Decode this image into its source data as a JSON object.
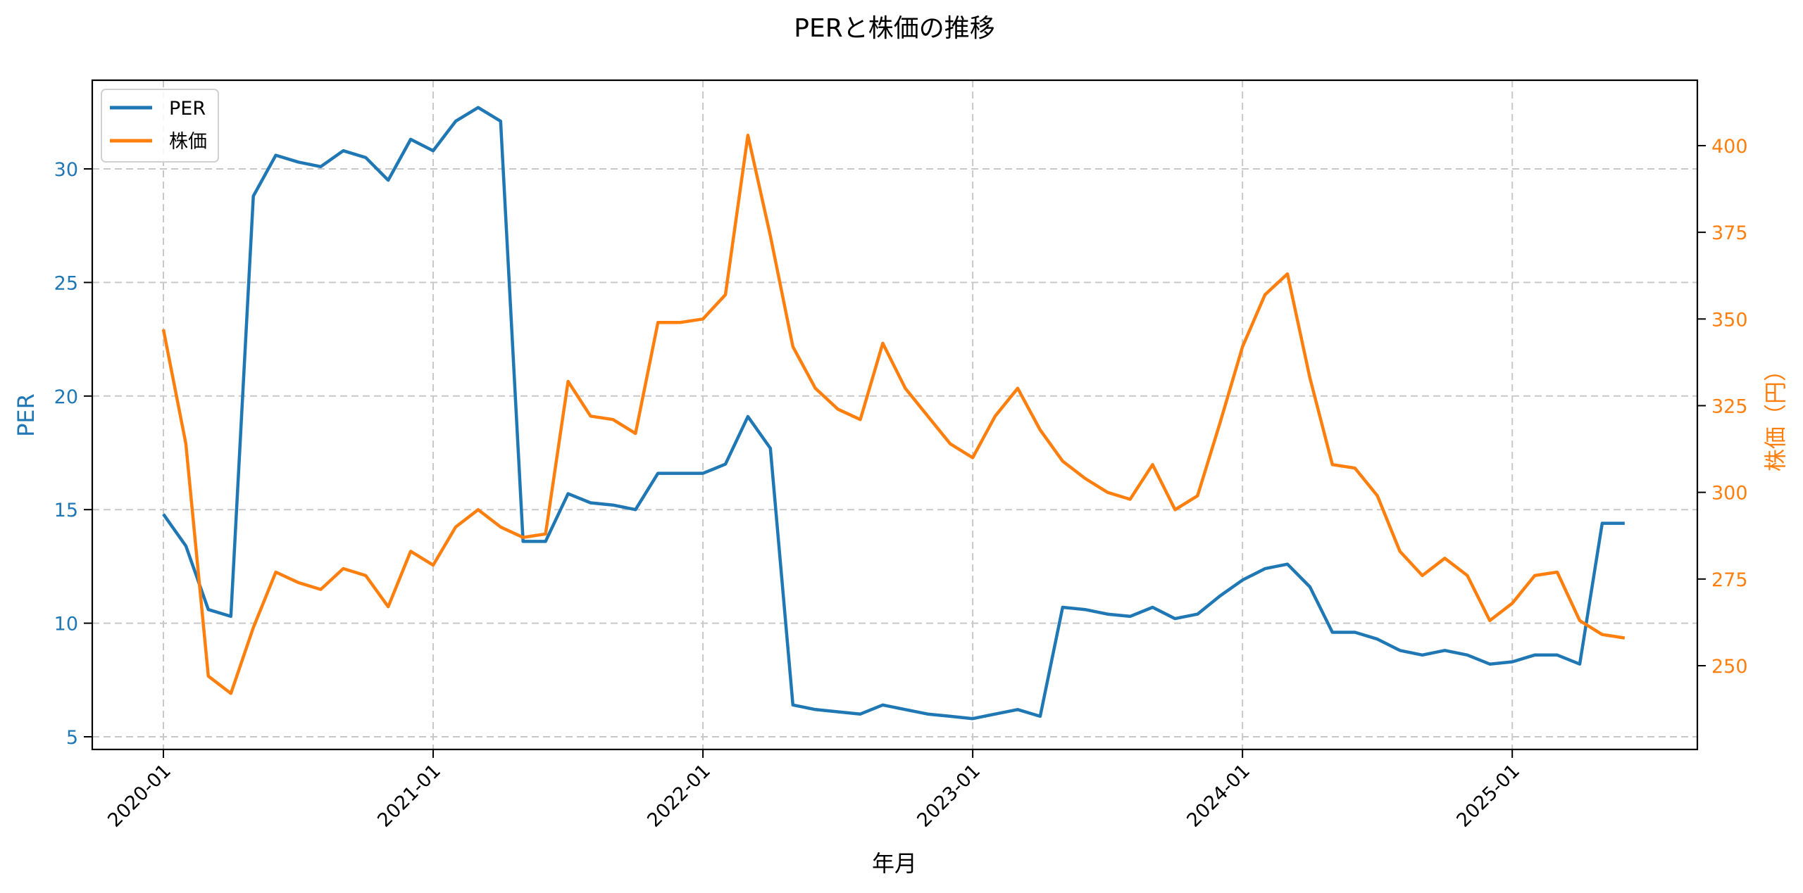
{
  "chart_data": {
    "type": "line",
    "title": "PERと株価の推移",
    "xlabel": "年月",
    "ylabel": "PER",
    "ylabel_right": "株価（円）",
    "x_tick_labels": [
      "2020-01",
      "2021-01",
      "2022-01",
      "2023-01",
      "2024-01",
      "2025-01"
    ],
    "y_ticks_left": [
      5,
      10,
      15,
      20,
      25,
      30
    ],
    "y_ticks_right": [
      250,
      275,
      300,
      325,
      350,
      375,
      400
    ],
    "ylim_left": [
      4.5,
      33.8
    ],
    "ylim_right": [
      232,
      416
    ],
    "grid": true,
    "legend_position": "upper left",
    "x": [
      "2020-01",
      "2020-02",
      "2020-03",
      "2020-04",
      "2020-05",
      "2020-06",
      "2020-07",
      "2020-08",
      "2020-09",
      "2020-10",
      "2020-11",
      "2020-12",
      "2021-01",
      "2021-02",
      "2021-03",
      "2021-04",
      "2021-05",
      "2021-06",
      "2021-07",
      "2021-08",
      "2021-09",
      "2021-10",
      "2021-11",
      "2021-12",
      "2022-01",
      "2022-02",
      "2022-03",
      "2022-04",
      "2022-05",
      "2022-06",
      "2022-07",
      "2022-08",
      "2022-09",
      "2022-10",
      "2022-11",
      "2022-12",
      "2023-01",
      "2023-02",
      "2023-03",
      "2023-04",
      "2023-05",
      "2023-06",
      "2023-07",
      "2023-08",
      "2023-09",
      "2023-10",
      "2023-11",
      "2023-12",
      "2024-01",
      "2024-02",
      "2024-03",
      "2024-04",
      "2024-05",
      "2024-06",
      "2024-07",
      "2024-08",
      "2024-09",
      "2024-10",
      "2024-11",
      "2024-12",
      "2025-01",
      "2025-02",
      "2025-03",
      "2025-04",
      "2025-05",
      "2025-06"
    ],
    "series": [
      {
        "name": "PER",
        "axis": "left",
        "color": "#1f77b4",
        "values": [
          14.8,
          13.4,
          10.6,
          10.3,
          28.8,
          30.6,
          30.3,
          30.1,
          30.8,
          30.5,
          29.5,
          31.3,
          30.8,
          32.1,
          32.7,
          32.1,
          13.6,
          13.6,
          15.7,
          15.3,
          15.2,
          15.0,
          16.6,
          16.6,
          16.6,
          17.0,
          19.1,
          17.7,
          6.4,
          6.2,
          6.1,
          6.0,
          6.4,
          6.2,
          6.0,
          5.9,
          5.8,
          6.0,
          6.2,
          5.9,
          10.7,
          10.6,
          10.4,
          10.3,
          10.7,
          10.2,
          10.4,
          11.2,
          11.9,
          12.4,
          12.6,
          11.6,
          9.6,
          9.6,
          9.3,
          8.8,
          8.6,
          8.8,
          8.6,
          8.2,
          8.3,
          8.6,
          8.6,
          8.2,
          14.4,
          14.4
        ]
      },
      {
        "name": "株価",
        "axis": "right",
        "color": "#ff7f0e",
        "values": [
          347,
          314,
          247,
          242,
          261,
          277,
          274,
          272,
          278,
          276,
          267,
          283,
          279,
          290,
          295,
          290,
          287,
          288,
          332,
          322,
          321,
          317,
          349,
          349,
          350,
          357,
          403,
          374,
          342,
          330,
          324,
          321,
          343,
          330,
          322,
          314,
          310,
          322,
          330,
          318,
          309,
          304,
          300,
          298,
          308,
          295,
          299,
          320,
          342,
          357,
          363,
          333,
          308,
          307,
          299,
          283,
          276,
          281,
          276,
          263,
          268,
          276,
          277,
          263,
          259,
          258
        ]
      }
    ]
  },
  "legend": {
    "items": [
      {
        "label": "PER",
        "color": "#1f77b4"
      },
      {
        "label": "株価",
        "color": "#ff7f0e"
      }
    ]
  },
  "colors": {
    "per": "#1f77b4",
    "price": "#ff7f0e",
    "grid": "#c8c8c8",
    "axis": "#000000"
  }
}
